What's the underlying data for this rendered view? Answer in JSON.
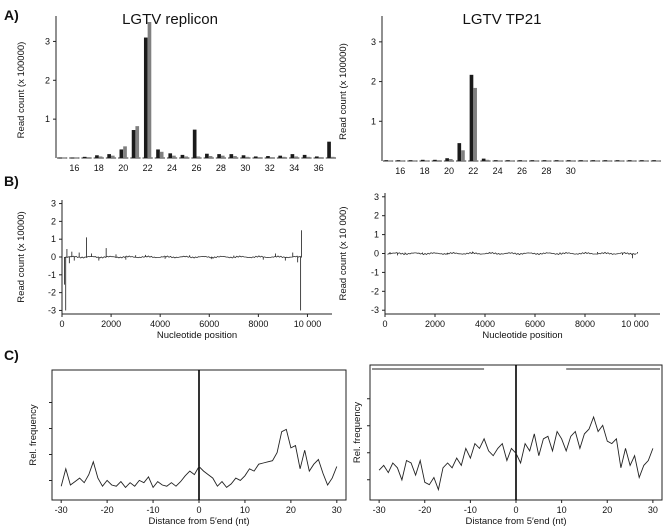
{
  "figure": {
    "panel_labels": [
      "A)",
      "B)",
      "C)"
    ]
  },
  "chart_data": [
    {
      "id": "A_left",
      "type": "bar",
      "title": "LGTV replicon",
      "ylabel": "Read count (x 100000)",
      "ylim": [
        0,
        3.5
      ],
      "yticks": [
        "1",
        "2",
        "3"
      ],
      "categories": [
        "15",
        "16",
        "17",
        "18",
        "19",
        "20",
        "21",
        "22",
        "23",
        "24",
        "25",
        "26",
        "27",
        "28",
        "29",
        "30",
        "31",
        "32",
        "33",
        "34",
        "35",
        "36",
        "37"
      ],
      "xtick_labels": [
        "16",
        "18",
        "20",
        "22",
        "24",
        "26",
        "28",
        "30",
        "32",
        "34",
        "36"
      ],
      "series": [
        {
          "color": "#1a1a1a",
          "values": [
            0.01,
            0.01,
            0.03,
            0.07,
            0.1,
            0.22,
            0.72,
            3.1,
            0.22,
            0.12,
            0.08,
            0.73,
            0.11,
            0.1,
            0.1,
            0.07,
            0.04,
            0.05,
            0.06,
            0.1,
            0.08,
            0.04,
            0.42
          ]
        },
        {
          "color": "#808080",
          "values": [
            0.01,
            0.01,
            0.02,
            0.04,
            0.06,
            0.3,
            0.82,
            3.5,
            0.16,
            0.06,
            0.04,
            0.04,
            0.05,
            0.06,
            0.05,
            0.03,
            0.02,
            0.02,
            0.03,
            0.04,
            0.03,
            0.02,
            0.03
          ]
        }
      ]
    },
    {
      "id": "A_right",
      "type": "bar",
      "title": "LGTV TP21",
      "ylabel": "Read count (x 100000)",
      "ylim": [
        0,
        3.5
      ],
      "yticks": [
        "1",
        "2",
        "3"
      ],
      "categories": [
        "15",
        "16",
        "17",
        "18",
        "19",
        "20",
        "21",
        "22",
        "23",
        "24",
        "25",
        "26",
        "27",
        "28",
        "29",
        "30",
        "31",
        "32",
        "33",
        "34",
        "35",
        "36",
        "37"
      ],
      "xtick_labels": [
        "16",
        "18",
        "20",
        "22",
        "24",
        "26",
        "28",
        "30"
      ],
      "series": [
        {
          "color": "#1a1a1a",
          "values": [
            0.02,
            0.02,
            0.02,
            0.03,
            0.03,
            0.07,
            0.45,
            2.17,
            0.06,
            0.02,
            0.02,
            0.02,
            0.02,
            0.02,
            0.02,
            0.02,
            0.02,
            0.02,
            0.02,
            0.02,
            0.02,
            0.02,
            0.02
          ]
        },
        {
          "color": "#808080",
          "values": [
            0.01,
            0.01,
            0.01,
            0.01,
            0.02,
            0.05,
            0.27,
            1.84,
            0.03,
            0.01,
            0.01,
            0.01,
            0.01,
            0.01,
            0.01,
            0.01,
            0.01,
            0.01,
            0.01,
            0.01,
            0.01,
            0.01,
            0.01
          ]
        }
      ]
    },
    {
      "id": "B_left",
      "type": "line",
      "ylabel": "Read count (x 10000)",
      "xlabel": "Nucleotide position",
      "ylim": [
        -3.2,
        3.2
      ],
      "xlim": [
        0,
        11000
      ],
      "yticks": [
        "3",
        "2",
        "1",
        "0",
        "-1",
        "-2",
        "-3"
      ],
      "xticks": [
        "0",
        "2000",
        "4000",
        "6000",
        "8000",
        "10 000"
      ],
      "spikes": [
        [
          100,
          -1.55
        ],
        [
          150,
          -3.0
        ],
        [
          200,
          0.45
        ],
        [
          300,
          -0.35
        ],
        [
          400,
          0.3
        ],
        [
          500,
          -0.2
        ],
        [
          700,
          0.25
        ],
        [
          1000,
          1.1
        ],
        [
          1200,
          0.2
        ],
        [
          1500,
          -0.2
        ],
        [
          1800,
          0.5
        ],
        [
          2200,
          0.15
        ],
        [
          2600,
          -0.15
        ],
        [
          3000,
          0.1
        ],
        [
          3400,
          0.12
        ],
        [
          4200,
          -0.1
        ],
        [
          5200,
          0.1
        ],
        [
          6100,
          -0.12
        ],
        [
          7000,
          0.08
        ],
        [
          8200,
          -0.15
        ],
        [
          8700,
          0.2
        ],
        [
          9100,
          -0.2
        ],
        [
          9400,
          0.25
        ],
        [
          9600,
          -0.3
        ],
        [
          9720,
          -3.0
        ],
        [
          9760,
          1.5
        ]
      ]
    },
    {
      "id": "B_right",
      "type": "line",
      "ylabel": "Read count (x 10 000)",
      "xlabel": "Nucleotide position",
      "ylim": [
        -3.2,
        3.2
      ],
      "xlim": [
        0,
        11000
      ],
      "yticks": [
        "3",
        "2",
        "1",
        "0",
        "-1",
        "-2",
        "-3"
      ],
      "xticks": [
        "0",
        "2000",
        "4000",
        "6000",
        "8000",
        "10 000"
      ],
      "spikes": [
        [
          200,
          0.08
        ],
        [
          500,
          -0.1
        ],
        [
          800,
          0.05
        ],
        [
          1500,
          0.05
        ],
        [
          2500,
          -0.05
        ],
        [
          3500,
          0.1
        ],
        [
          4200,
          0.05
        ],
        [
          5500,
          -0.05
        ],
        [
          7000,
          0.06
        ],
        [
          8500,
          0.08
        ],
        [
          9500,
          -0.08
        ],
        [
          9900,
          -0.25
        ],
        [
          10100,
          0.08
        ]
      ]
    },
    {
      "id": "C_left",
      "type": "line",
      "ylabel": "Rel. frequency",
      "xlabel": "Distance from 5′end (nt)",
      "xlim": [
        -32,
        32
      ],
      "xticks": [
        -30,
        -20,
        -10,
        0,
        10,
        20,
        30
      ],
      "x": [
        -30,
        -29,
        -28,
        -27,
        -26,
        -25,
        -24,
        -23,
        -22,
        -21,
        -20,
        -19,
        -18,
        -17,
        -16,
        -15,
        -14,
        -13,
        -12,
        -11,
        -10,
        -9,
        -8,
        -7,
        -6,
        -5,
        -4,
        -3,
        -2,
        -1,
        0,
        1,
        2,
        3,
        4,
        5,
        6,
        7,
        8,
        9,
        10,
        11,
        12,
        13,
        14,
        15,
        16,
        17,
        18,
        19,
        20,
        21,
        22,
        23,
        24,
        25,
        26,
        27,
        28,
        29,
        30
      ],
      "y": [
        0.05,
        0.2,
        0.06,
        0.09,
        0.12,
        0.08,
        0.15,
        0.26,
        0.12,
        0.05,
        0.1,
        0.06,
        0.05,
        0.09,
        0.04,
        0.08,
        0.05,
        0.1,
        0.08,
        0.13,
        0.04,
        0.09,
        0.06,
        0.05,
        0.08,
        0.05,
        0.09,
        0.14,
        0.18,
        0.15,
        0.22,
        0.18,
        0.15,
        0.12,
        0.05,
        0.09,
        0.04,
        0.07,
        0.12,
        0.1,
        0.14,
        0.2,
        0.18,
        0.24,
        0.25,
        0.26,
        0.27,
        0.34,
        0.52,
        0.54,
        0.38,
        0.4,
        0.2,
        0.36,
        0.18,
        0.24,
        0.28,
        0.16,
        0.06,
        0.12,
        0.22
      ]
    },
    {
      "id": "C_right",
      "type": "line",
      "ylabel": "Rel. frequency",
      "xlabel": "Distance from 5′end (nt)",
      "xlim": [
        -32,
        32
      ],
      "xticks": [
        -30,
        -20,
        -10,
        0,
        10,
        20,
        30
      ],
      "x": [
        -30,
        -29,
        -28,
        -27,
        -26,
        -25,
        -24,
        -23,
        -22,
        -21,
        -20,
        -19,
        -18,
        -17,
        -16,
        -15,
        -14,
        -13,
        -12,
        -11,
        -10,
        -9,
        -8,
        -7,
        -6,
        -5,
        -4,
        -3,
        -2,
        -1,
        0,
        1,
        2,
        3,
        4,
        5,
        6,
        7,
        8,
        9,
        10,
        11,
        12,
        13,
        14,
        15,
        16,
        17,
        18,
        19,
        20,
        21,
        22,
        23,
        24,
        25,
        26,
        27,
        28,
        29,
        30
      ],
      "y": [
        0.18,
        0.22,
        0.16,
        0.24,
        0.2,
        0.1,
        0.26,
        0.24,
        0.14,
        0.26,
        0.08,
        0.06,
        0.12,
        0.02,
        0.2,
        0.24,
        0.2,
        0.28,
        0.22,
        0.36,
        0.28,
        0.4,
        0.36,
        0.44,
        0.34,
        0.3,
        0.36,
        0.4,
        0.26,
        0.36,
        0.32,
        0.24,
        0.4,
        0.34,
        0.48,
        0.3,
        0.44,
        0.46,
        0.34,
        0.5,
        0.44,
        0.34,
        0.46,
        0.5,
        0.36,
        0.48,
        0.52,
        0.62,
        0.5,
        0.55,
        0.42,
        0.4,
        0.44,
        0.2,
        0.36,
        0.22,
        0.3,
        0.12,
        0.22,
        0.26,
        0.36
      ]
    }
  ]
}
